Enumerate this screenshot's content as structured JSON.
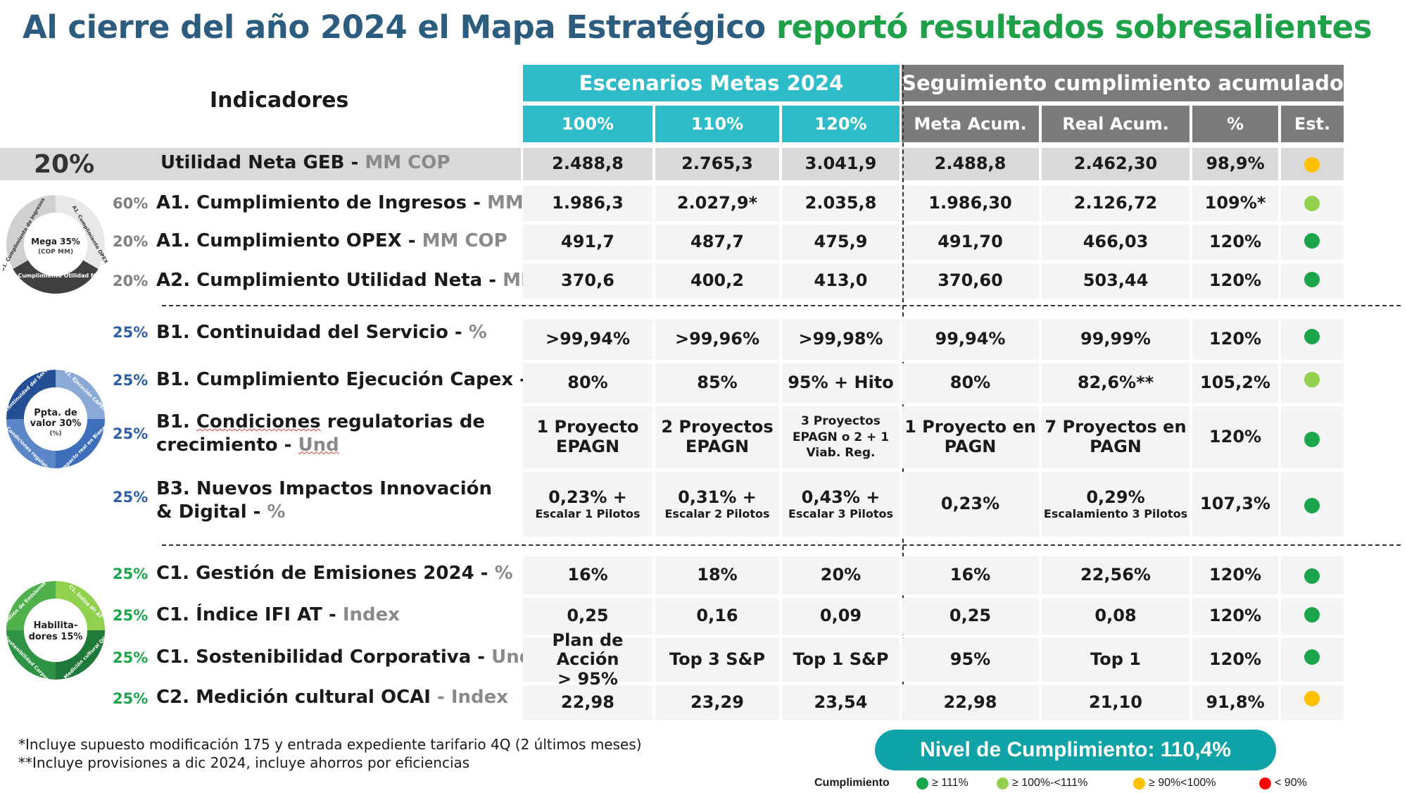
{
  "title": {
    "part1": "Al cierre del año 2024 el Mapa Estratégico",
    "part2": "reportó resultados sobresalientes"
  },
  "header": {
    "indicadores": "Indicadores",
    "escenarios": "Escenarios Metas 2024",
    "seguimiento": "Seguimiento cumplimiento acumulado",
    "cols": [
      "100%",
      "110%",
      "120%",
      "Meta Acum.",
      "Real Acum.",
      "%",
      "Est."
    ]
  },
  "colors": {
    "dark_green": "#1aa54b",
    "light_green": "#92d050",
    "yellow": "#ffc000",
    "red": "#ff0000",
    "teal": "#2dbcc8",
    "gray": "#7b7b7b"
  },
  "rows": [
    {
      "pct": "20%",
      "name": "Utilidad Neta GEB - ",
      "unit": "MM COP",
      "v": [
        "2.488,8",
        "2.765,3",
        "3.041,9",
        "2.488,8",
        "2.462,30",
        "98,9%"
      ],
      "status": "yellow"
    },
    {
      "pct": "60%",
      "name": "A1. Cumplimiento de Ingresos - ",
      "unit": "MM COP",
      "v": [
        "1.986,3",
        "2.027,9*",
        "2.035,8",
        "1.986,30",
        "2.126,72",
        "109%*"
      ],
      "status": "light_green"
    },
    {
      "pct": "20%",
      "name": "A1. Cumplimiento OPEX - ",
      "unit": "MM COP",
      "v": [
        "491,7",
        "487,7",
        "475,9",
        "491,70",
        "466,03",
        "120%"
      ],
      "status": "dark_green"
    },
    {
      "pct": "20%",
      "name": "A2. Cumplimiento Utilidad Neta - ",
      "unit": "MM COP",
      "v": [
        "370,6",
        "400,2",
        "413,0",
        "370,60",
        "503,44",
        "120%"
      ],
      "status": "dark_green"
    },
    {
      "pct": "25%",
      "name": "B1. Continuidad del Servicio - ",
      "unit": "%",
      "v": [
        ">99,94%",
        ">99,96%",
        ">99,98%",
        "99,94%",
        "99,99%",
        "120%"
      ],
      "status": "dark_green"
    },
    {
      "pct": "25%",
      "name": "B1. Cumplimiento Ejecución Capex - ",
      "unit": "%",
      "v": [
        "80%",
        "85%",
        "95% + Hito",
        "80%",
        "82,6%**",
        "105,2%"
      ],
      "status": "light_green"
    },
    {
      "pct": "25%",
      "name1": "B1. ",
      "name1w": "Condiciones",
      "name1b": " regulatorias de",
      "name2": "crecimiento - ",
      "unit": "Und",
      "v": [
        "1 Proyecto",
        "EPAGN",
        "2 Proyectos",
        "EPAGN",
        "3 Proyectos",
        "EPAGN o 2 + 1",
        "Viab. Reg.",
        "1 Proyecto en",
        "PAGN",
        "7 Proyectos en",
        "PAGN",
        "120%"
      ],
      "status": "dark_green"
    },
    {
      "pct": "25%",
      "name1": "B3. Nuevos Impactos Innovación",
      "name2": "& Digital - ",
      "unit": "%",
      "v": [
        "0,23% +",
        "Escalar 1 Pilotos",
        "0,31% +",
        "Escalar 2 Pilotos",
        "0,43% +",
        "Escalar 3 Pilotos",
        "0,23%",
        "0,29%",
        "Escalamiento 3 Pilotos",
        "107,3%"
      ],
      "status": "dark_green"
    },
    {
      "pct": "25%",
      "name": "C1. Gestión de Emisiones 2024 - ",
      "unit": "%",
      "v": [
        "16%",
        "18%",
        "20%",
        "16%",
        "22,56%",
        "120%"
      ],
      "status": "dark_green"
    },
    {
      "pct": "25%",
      "name": "C1. Índice IFI AT - ",
      "unit": "Index",
      "v": [
        "0,25",
        "0,16",
        "0,09",
        "0,25",
        "0,08",
        "120%"
      ],
      "status": "dark_green"
    },
    {
      "pct": "25%",
      "name": "C1. Sostenibilidad Corporativa - ",
      "unit": "Und",
      "v": [
        "Plan de Acción",
        "> 95%",
        "Top 3 S&P",
        "Top 1 S&P",
        "95%",
        "Top 1",
        "120%"
      ],
      "status": "dark_green"
    },
    {
      "pct": "25%",
      "name": "C2. Medición cultural OCAI",
      "unit": " - Index",
      "v": [
        "22,98",
        "23,29",
        "23,54",
        "22,98",
        "21,10",
        "91,8%"
      ],
      "status": "yellow"
    }
  ],
  "donuts": {
    "mega": {
      "center1": "Mega 35%",
      "center2": "(COP MM)",
      "seg1": "B1. Cumplimiento de Ingresos",
      "seg2": "A1. Cumplimiento OPEX",
      "seg3": "A2. Cumplimiento Utilidad Neta"
    },
    "valor": {
      "center1": "Ppta. de",
      "center2": "valor 30%",
      "center3": "(%)",
      "seg1": "B1. Continuidad del Servicio",
      "seg2": "B1. Ejecución CAPEX",
      "seg3": "B2. Impacto real en Bienestar",
      "seg4": "B1. Condiciones regulatorias"
    },
    "habil": {
      "center1": "Habilita-",
      "center2": "dores 15%",
      "seg1": "C1. Gestión de Emisiones 2024",
      "seg2": "C1. Índice IFI AT",
      "seg3": "C2. Medición cultural OCAI",
      "seg4": "C1. Sostenibilidad Corporativa"
    }
  },
  "footnotes": [
    "*Incluye supuesto modificación 175 y entrada expediente tarifario 4Q (2 últimos meses)",
    "**Incluye provisiones a dic 2024, incluye ahorros por eficiencias"
  ],
  "nivel": "Nivel de Cumplimiento: 110,4%",
  "legend": {
    "label": "Cumplimiento",
    "items": [
      "≥ 111%",
      "≥ 100%-<111%",
      "≥ 90%<100%",
      "< 90%"
    ]
  }
}
